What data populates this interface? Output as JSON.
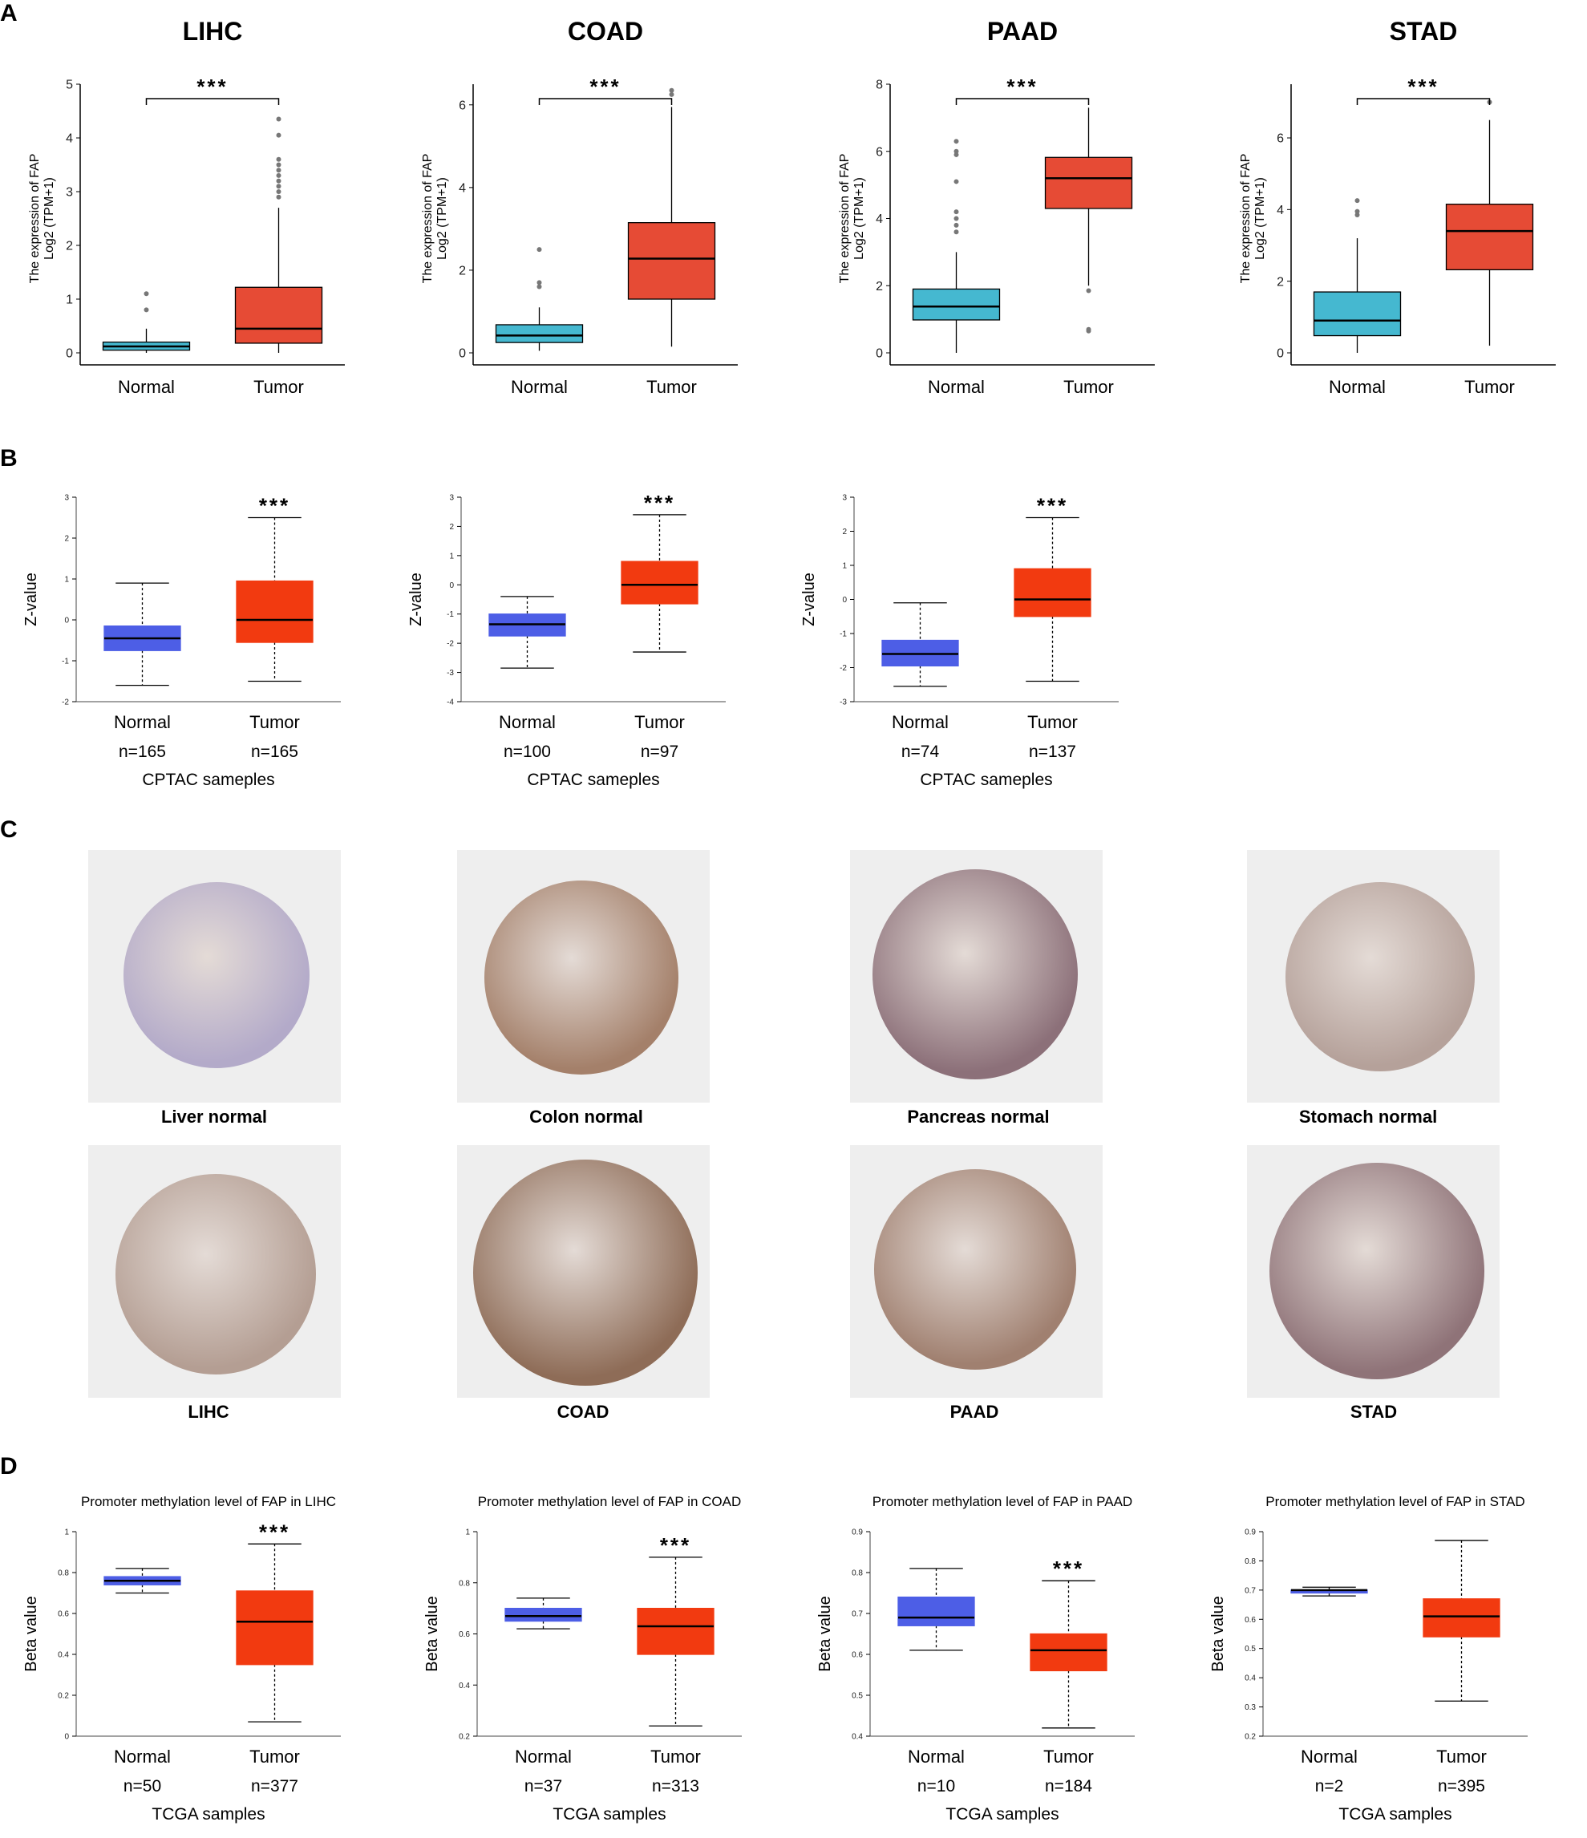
{
  "panel_labels": {
    "a": "A",
    "b": "B",
    "c": "C",
    "d": "D"
  },
  "chart_data": [
    {
      "id": "A1",
      "panel": "A",
      "type": "box",
      "title": "LIHC",
      "ylabel_line1": "The expression of FAP",
      "ylabel_line2": "Log2 (TPM+1)",
      "ylim": [
        0,
        5
      ],
      "yticks": [
        0,
        1,
        2,
        3,
        4,
        5
      ],
      "categories": [
        "Normal",
        "Tumor"
      ],
      "significance": "***",
      "boxes": [
        {
          "name": "Normal",
          "color": "#45b8d0",
          "min": 0.0,
          "q1": 0.05,
          "median": 0.12,
          "q3": 0.2,
          "max": 0.45,
          "outliers": [
            0.8,
            1.1
          ]
        },
        {
          "name": "Tumor",
          "color": "#e64b35",
          "min": 0.0,
          "q1": 0.18,
          "median": 0.45,
          "q3": 1.22,
          "max": 2.7,
          "outliers": [
            2.9,
            3.0,
            3.1,
            3.2,
            3.3,
            3.4,
            3.5,
            3.6,
            4.05,
            4.35
          ]
        }
      ]
    },
    {
      "id": "A2",
      "panel": "A",
      "type": "box",
      "title": "COAD",
      "ylabel_line1": "The expression of FAP",
      "ylabel_line2": "Log2 (TPM+1)",
      "ylim": [
        0,
        6.5
      ],
      "yticks": [
        0,
        2,
        4,
        6
      ],
      "categories": [
        "Normal",
        "Tumor"
      ],
      "significance": "***",
      "boxes": [
        {
          "name": "Normal",
          "color": "#45b8d0",
          "min": 0.05,
          "q1": 0.25,
          "median": 0.42,
          "q3": 0.68,
          "max": 1.1,
          "outliers": [
            1.6,
            1.7,
            2.5
          ]
        },
        {
          "name": "Tumor",
          "color": "#e64b35",
          "min": 0.15,
          "q1": 1.3,
          "median": 2.28,
          "q3": 3.15,
          "max": 5.95,
          "outliers": [
            6.25,
            6.35
          ]
        }
      ]
    },
    {
      "id": "A3",
      "panel": "A",
      "type": "box",
      "title": "PAAD",
      "ylabel_line1": "The expression of FAP",
      "ylabel_line2": "Log2 (TPM+1)",
      "ylim": [
        0,
        8
      ],
      "yticks": [
        0,
        2,
        4,
        6,
        8
      ],
      "categories": [
        "Normal",
        "Tumor"
      ],
      "significance": "***",
      "boxes": [
        {
          "name": "Normal",
          "color": "#45b8d0",
          "min": 0.0,
          "q1": 0.98,
          "median": 1.38,
          "q3": 1.9,
          "max": 3.0,
          "outliers": [
            3.6,
            3.8,
            4.0,
            4.2,
            5.1,
            5.9,
            6.0,
            6.3
          ]
        },
        {
          "name": "Tumor",
          "color": "#e64b35",
          "min": 2.0,
          "q1": 4.3,
          "median": 5.2,
          "q3": 5.82,
          "max": 7.3,
          "outliers": [
            1.85,
            0.7,
            0.65
          ]
        }
      ]
    },
    {
      "id": "A4",
      "panel": "A",
      "type": "box",
      "title": "STAD",
      "ylabel_line1": "The expression of FAP",
      "ylabel_line2": "Log2 (TPM+1)",
      "ylim": [
        0,
        7.5
      ],
      "yticks": [
        0,
        2,
        4,
        6
      ],
      "categories": [
        "Normal",
        "Tumor"
      ],
      "significance": "***",
      "boxes": [
        {
          "name": "Normal",
          "color": "#45b8d0",
          "min": 0.0,
          "q1": 0.48,
          "median": 0.9,
          "q3": 1.7,
          "max": 3.2,
          "outliers": [
            3.85,
            3.95,
            4.25
          ]
        },
        {
          "name": "Tumor",
          "color": "#e64b35",
          "min": 0.2,
          "q1": 2.32,
          "median": 3.4,
          "q3": 4.15,
          "max": 6.5,
          "outliers": [
            7.0
          ]
        }
      ]
    },
    {
      "id": "B1",
      "panel": "B",
      "type": "box",
      "ylabel": "Z-value",
      "ylim": [
        -2,
        3
      ],
      "yticks": [
        -2,
        -1,
        0,
        1,
        2,
        3
      ],
      "categories": [
        "Normal",
        "Tumor"
      ],
      "counts": [
        "n=165",
        "n=165"
      ],
      "footer": "CPTAC  sameples",
      "significance": "***",
      "boxes": [
        {
          "name": "Normal",
          "color": "#4d5ee6",
          "min": -1.6,
          "q1": -0.75,
          "median": -0.45,
          "q3": -0.15,
          "max": 0.9,
          "outliers": []
        },
        {
          "name": "Tumor",
          "color": "#f23a10",
          "min": -1.5,
          "q1": -0.55,
          "median": 0.0,
          "q3": 0.95,
          "max": 2.5,
          "outliers": []
        }
      ]
    },
    {
      "id": "B2",
      "panel": "B",
      "type": "box",
      "ylabel": "Z-value",
      "ylim": [
        -4,
        3
      ],
      "yticks": [
        -4,
        -3,
        -2,
        -1,
        0,
        1,
        2,
        3
      ],
      "categories": [
        "Normal",
        "Tumor"
      ],
      "counts": [
        "n=100",
        "n=97"
      ],
      "footer": "CPTAC  sameples",
      "significance": "***",
      "boxes": [
        {
          "name": "Normal",
          "color": "#4d5ee6",
          "min": -2.85,
          "q1": -1.75,
          "median": -1.35,
          "q3": -1.0,
          "max": -0.4,
          "outliers": []
        },
        {
          "name": "Tumor",
          "color": "#f23a10",
          "min": -2.3,
          "q1": -0.65,
          "median": 0.0,
          "q3": 0.8,
          "max": 2.4,
          "outliers": []
        }
      ]
    },
    {
      "id": "B3",
      "panel": "B",
      "type": "box",
      "ylabel": "Z-value",
      "ylim": [
        -3,
        3
      ],
      "yticks": [
        -3,
        -2,
        -1,
        0,
        1,
        2,
        3
      ],
      "categories": [
        "Normal",
        "Tumor"
      ],
      "counts": [
        "n=74",
        "n=137"
      ],
      "footer": "CPTAC  sameples",
      "significance": "***",
      "boxes": [
        {
          "name": "Normal",
          "color": "#4d5ee6",
          "min": -2.55,
          "q1": -1.95,
          "median": -1.6,
          "q3": -1.2,
          "max": -0.1,
          "outliers": []
        },
        {
          "name": "Tumor",
          "color": "#f23a10",
          "min": -2.4,
          "q1": -0.5,
          "median": 0.0,
          "q3": 0.9,
          "max": 2.4,
          "outliers": []
        }
      ]
    },
    {
      "id": "D1",
      "panel": "D",
      "type": "box",
      "title": "Promoter methylation level of FAP in LIHC",
      "ylabel": "Beta value",
      "ylim": [
        0,
        1
      ],
      "yticks": [
        0,
        0.2,
        0.4,
        0.6,
        0.8,
        1
      ],
      "categories": [
        "Normal",
        "Tumor"
      ],
      "counts": [
        "n=50",
        "n=377"
      ],
      "footer": "TCGA  samples",
      "significance": "***",
      "boxes": [
        {
          "name": "Normal",
          "color": "#4d5ee6",
          "min": 0.7,
          "q1": 0.74,
          "median": 0.76,
          "q3": 0.78,
          "max": 0.82,
          "outliers": []
        },
        {
          "name": "Tumor",
          "color": "#f23a10",
          "min": 0.07,
          "q1": 0.35,
          "median": 0.56,
          "q3": 0.71,
          "max": 0.94,
          "outliers": []
        }
      ]
    },
    {
      "id": "D2",
      "panel": "D",
      "type": "box",
      "title": "Promoter methylation level of FAP in COAD",
      "ylabel": "Beta value",
      "ylim": [
        0.2,
        1
      ],
      "yticks": [
        0.2,
        0.4,
        0.6,
        0.8,
        1
      ],
      "categories": [
        "Normal",
        "Tumor"
      ],
      "counts": [
        "n=37",
        "n=313"
      ],
      "footer": "TCGA  samples",
      "significance": "***",
      "boxes": [
        {
          "name": "Normal",
          "color": "#4d5ee6",
          "min": 0.62,
          "q1": 0.65,
          "median": 0.67,
          "q3": 0.7,
          "max": 0.74,
          "outliers": []
        },
        {
          "name": "Tumor",
          "color": "#f23a10",
          "min": 0.24,
          "q1": 0.52,
          "median": 0.63,
          "q3": 0.7,
          "max": 0.9,
          "outliers": []
        }
      ]
    },
    {
      "id": "D3",
      "panel": "D",
      "type": "box",
      "title": "Promoter methylation level of FAP in PAAD",
      "ylabel": "Beta value",
      "ylim": [
        0.4,
        0.9
      ],
      "yticks": [
        0.4,
        0.5,
        0.6,
        0.7,
        0.8,
        0.9
      ],
      "categories": [
        "Normal",
        "Tumor"
      ],
      "counts": [
        "n=10",
        "n=184"
      ],
      "footer": "TCGA  samples",
      "significance": "***",
      "boxes": [
        {
          "name": "Normal",
          "color": "#4d5ee6",
          "min": 0.61,
          "q1": 0.67,
          "median": 0.69,
          "q3": 0.74,
          "max": 0.81,
          "outliers": []
        },
        {
          "name": "Tumor",
          "color": "#f23a10",
          "min": 0.42,
          "q1": 0.56,
          "median": 0.61,
          "q3": 0.65,
          "max": 0.78,
          "outliers": []
        }
      ]
    },
    {
      "id": "D4",
      "panel": "D",
      "type": "box",
      "title": "Promoter methylation level of FAP in STAD",
      "ylabel": "Beta value",
      "ylim": [
        0.2,
        0.9
      ],
      "yticks": [
        0.2,
        0.3,
        0.4,
        0.5,
        0.6,
        0.7,
        0.8,
        0.9
      ],
      "categories": [
        "Normal",
        "Tumor"
      ],
      "counts": [
        "n=2",
        "n=395"
      ],
      "footer": "TCGA  samples",
      "significance": "",
      "boxes": [
        {
          "name": "Normal",
          "color": "#4d5ee6",
          "min": 0.68,
          "q1": 0.69,
          "median": 0.7,
          "q3": 0.7,
          "max": 0.71,
          "outliers": []
        },
        {
          "name": "Tumor",
          "color": "#f23a10",
          "min": 0.32,
          "q1": 0.54,
          "median": 0.61,
          "q3": 0.67,
          "max": 0.87,
          "outliers": []
        }
      ]
    }
  ],
  "ihc": {
    "normal": [
      {
        "label": "Liver normal",
        "color": "#b3aac9"
      },
      {
        "label": "Colon normal",
        "color": "#a4806a"
      },
      {
        "label": "Pancreas normal",
        "color": "#8c7079"
      },
      {
        "label": "Stomach normal",
        "color": "#b5a19a"
      }
    ],
    "tumor": [
      {
        "label": "LIHC",
        "color": "#b49e93"
      },
      {
        "label": "COAD",
        "color": "#8e6c57"
      },
      {
        "label": "PAAD",
        "color": "#a08070"
      },
      {
        "label": "STAD",
        "color": "#8f7378"
      }
    ]
  }
}
